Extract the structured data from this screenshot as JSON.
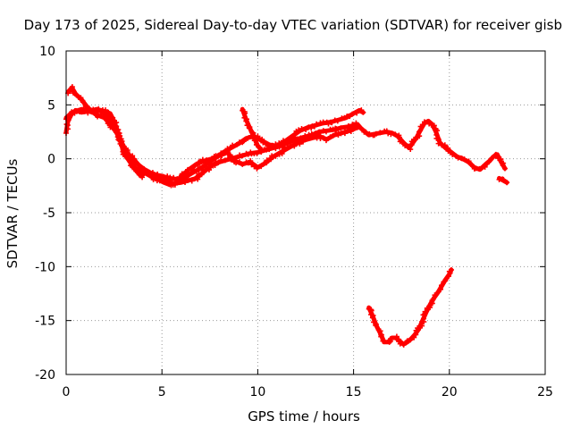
{
  "chart_data": {
    "type": "scatter",
    "title": "Day 173 of 2025, Sidereal Day-to-day VTEC variation (SDTVAR) for receiver gisb",
    "xlabel": "GPS time / hours",
    "ylabel": "SDTVAR / TECUs",
    "xlim": [
      0,
      25
    ],
    "ylim": [
      -20,
      10
    ],
    "grid": true,
    "grid_style": "dotted",
    "series_color": "#ff0000",
    "x_ticks": [
      {
        "value": 0,
        "label": "0"
      },
      {
        "value": 5,
        "label": "5"
      },
      {
        "value": 10,
        "label": "10"
      },
      {
        "value": 15,
        "label": "15"
      },
      {
        "value": 20,
        "label": "20"
      },
      {
        "value": 25,
        "label": "25"
      }
    ],
    "y_ticks": [
      {
        "value": 10,
        "label": "10"
      },
      {
        "value": 5,
        "label": "5"
      },
      {
        "value": 0,
        "label": "0"
      },
      {
        "value": -5,
        "label": "-5"
      },
      {
        "value": -10,
        "label": "-10"
      },
      {
        "value": -15,
        "label": "-15"
      },
      {
        "value": -20,
        "label": "-20"
      }
    ],
    "series": [
      {
        "name": "trace-1",
        "x": [
          0.0,
          0.1,
          0.3,
          0.5,
          0.8,
          1.2,
          1.6,
          2.0,
          2.3,
          2.5,
          2.8,
          3.0,
          3.3,
          3.5,
          3.8,
          4.0,
          4.3,
          4.6,
          5.0,
          5.3,
          5.6,
          6.0,
          6.4,
          6.8,
          7.2,
          7.6,
          8.0,
          8.4,
          8.8,
          9.2,
          9.6,
          10.0,
          10.4,
          10.8,
          11.2,
          11.6,
          12.0,
          12.4,
          12.8,
          13.2,
          13.6,
          14.0,
          14.4,
          14.8,
          15.2,
          15.4,
          15.6,
          15.8,
          16.1,
          16.4,
          16.7,
          17.0,
          17.3,
          17.6,
          17.9,
          18.1,
          18.3,
          18.5,
          18.7,
          18.9,
          19.1,
          19.3,
          19.5,
          19.8,
          20.1,
          20.4,
          20.7,
          21.0,
          21.3,
          21.6,
          21.9,
          22.1,
          22.3,
          22.5,
          22.7,
          22.9
        ],
        "y": [
          2.5,
          3.5,
          4.2,
          4.5,
          4.3,
          4.4,
          4.6,
          4.4,
          4.2,
          3.5,
          2.0,
          0.5,
          -0.2,
          -0.8,
          -1.0,
          -1.2,
          -1.5,
          -1.8,
          -2.0,
          -2.1,
          -2.3,
          -2.2,
          -2.0,
          -1.8,
          -1.2,
          -0.6,
          -0.3,
          -0.1,
          0.1,
          0.3,
          0.5,
          0.6,
          0.8,
          1.0,
          1.2,
          1.5,
          1.8,
          2.0,
          2.2,
          2.5,
          2.6,
          2.7,
          2.9,
          3.0,
          3.2,
          2.8,
          2.5,
          2.2,
          2.3,
          2.4,
          2.5,
          2.4,
          2.1,
          1.5,
          1.0,
          1.5,
          2.0,
          2.7,
          3.3,
          3.5,
          3.2,
          2.5,
          1.5,
          1.0,
          0.6,
          0.2,
          0.0,
          -0.3,
          -0.8,
          -1.0,
          -0.5,
          -0.2,
          0.2,
          0.4,
          -0.3,
          -0.9
        ]
      },
      {
        "name": "trace-2",
        "x": [
          0.1,
          0.3,
          0.5,
          0.8,
          1.1,
          1.4,
          1.7,
          2.0,
          2.3,
          2.6,
          2.9,
          3.2,
          3.5,
          3.8,
          4.1,
          4.4,
          4.7,
          5.0,
          5.4,
          5.8,
          6.2,
          6.6,
          7.0,
          7.4,
          7.8,
          8.2,
          8.6,
          9.0,
          9.4,
          9.8,
          10.2,
          10.6,
          11.0,
          11.4,
          11.8,
          12.2,
          12.6,
          13.0,
          13.4,
          13.8,
          14.2,
          14.6,
          15.0,
          15.3,
          15.5
        ],
        "y": [
          6.2,
          6.6,
          6.0,
          5.5,
          4.8,
          4.3,
          4.0,
          3.8,
          3.2,
          2.5,
          1.5,
          0.5,
          0.0,
          -0.6,
          -1.0,
          -1.3,
          -1.5,
          -1.6,
          -1.8,
          -1.9,
          -1.7,
          -1.3,
          -0.9,
          -0.4,
          0.1,
          0.6,
          1.0,
          1.4,
          1.9,
          2.1,
          1.7,
          1.3,
          1.2,
          1.6,
          2.1,
          2.6,
          2.9,
          3.1,
          3.3,
          3.4,
          3.6,
          3.8,
          4.2,
          4.5,
          4.3
        ]
      },
      {
        "name": "trace-3",
        "x": [
          0.0,
          0.2,
          0.5,
          0.8,
          1.1,
          1.4,
          1.7,
          2.0,
          2.3,
          2.6,
          2.9,
          3.2,
          3.5,
          3.7,
          3.9,
          4.2,
          4.5,
          4.8,
          5.1,
          5.4,
          5.7,
          6.0,
          6.4,
          6.8,
          7.2,
          7.6,
          8.0,
          8.4,
          8.8,
          9.2,
          9.6,
          10.0,
          10.4,
          10.8,
          11.2,
          11.6,
          12.0,
          12.4,
          12.8,
          13.2,
          13.6,
          14.0,
          14.4,
          14.8,
          15.2
        ],
        "y": [
          3.8,
          4.1,
          4.4,
          4.6,
          4.5,
          4.3,
          4.5,
          4.2,
          3.8,
          2.8,
          1.5,
          0.3,
          -0.5,
          -1.2,
          -1.6,
          -1.2,
          -1.5,
          -1.9,
          -2.2,
          -2.4,
          -2.3,
          -1.6,
          -1.0,
          -0.5,
          -0.2,
          0.0,
          0.3,
          0.6,
          -0.2,
          -0.5,
          -0.3,
          -0.8,
          -0.4,
          0.2,
          0.6,
          1.0,
          1.4,
          1.7,
          1.9,
          2.1,
          1.8,
          2.2,
          2.4,
          2.6,
          2.9
        ]
      },
      {
        "name": "trace-4",
        "x": [
          9.2,
          9.4,
          9.6,
          9.8,
          10.0,
          10.2
        ],
        "y": [
          4.6,
          3.6,
          2.8,
          2.0,
          1.2,
          0.8
        ]
      },
      {
        "name": "trace-5",
        "x": [
          22.6,
          22.8,
          23.0
        ],
        "y": [
          -1.8,
          -2.0,
          -2.2
        ]
      },
      {
        "name": "trace-6",
        "x": [
          15.8,
          16.0,
          16.2,
          16.4,
          16.6,
          16.8,
          17.0,
          17.2,
          17.4,
          17.6,
          17.8,
          18.0,
          18.2,
          18.4,
          18.6,
          18.8,
          19.0,
          19.2,
          19.4,
          19.6,
          19.8,
          20.0,
          20.1
        ],
        "y": [
          -13.8,
          -14.6,
          -15.5,
          -16.2,
          -17.0,
          -17.0,
          -16.6,
          -16.6,
          -16.9,
          -17.2,
          -17.0,
          -16.7,
          -16.3,
          -15.8,
          -15.0,
          -14.2,
          -13.5,
          -12.9,
          -12.4,
          -11.8,
          -11.2,
          -10.7,
          -10.3
        ]
      }
    ]
  }
}
